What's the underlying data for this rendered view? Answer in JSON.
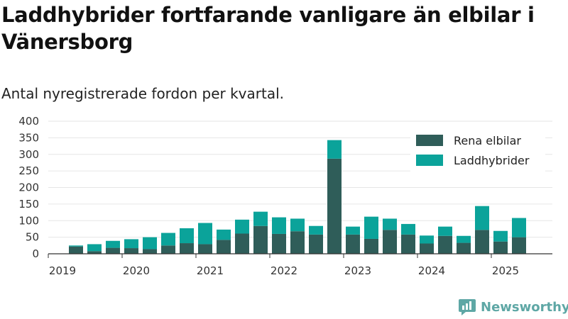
{
  "title": "Laddhybrider fortfarande vanligare än elbilar i Vänersborg",
  "subtitle": "Antal nyregistrerade fordon per kvartal.",
  "brand": {
    "name": "Newsworthy",
    "icon": "newsworthy-logo-icon",
    "color": "#5ea7a5"
  },
  "chart_data": {
    "type": "bar",
    "stacked": true,
    "grid": true,
    "legend_position": "top-right",
    "ylim": [
      0,
      400
    ],
    "y_ticks": [
      "0",
      "50",
      "100",
      "150",
      "200",
      "250",
      "300",
      "350",
      "400"
    ],
    "x_ticks": [
      "2019",
      "2020",
      "2021",
      "2022",
      "2023",
      "2024",
      "2025"
    ],
    "categories": [
      "2019 Q2",
      "2019 Q3",
      "2019 Q4",
      "2020 Q1",
      "2020 Q2",
      "2020 Q3",
      "2020 Q4",
      "2021 Q1",
      "2021 Q2",
      "2021 Q3",
      "2021 Q4",
      "2022 Q1",
      "2022 Q2",
      "2022 Q3",
      "2022 Q4",
      "2023 Q1",
      "2023 Q2",
      "2023 Q3",
      "2023 Q4",
      "2024 Q1",
      "2024 Q2",
      "2024 Q3",
      "2024 Q4",
      "2025 Q1",
      "2025 Q2"
    ],
    "series": [
      {
        "name": "Rena elbilar",
        "color": "#2f5d59",
        "values": [
          22,
          8,
          18,
          17,
          14,
          25,
          32,
          29,
          42,
          61,
          84,
          60,
          68,
          58,
          287,
          58,
          45,
          72,
          58,
          31,
          54,
          33,
          72,
          37,
          50
        ]
      },
      {
        "name": "Laddhybrider",
        "color": "#0ba39a",
        "values": [
          3,
          21,
          21,
          27,
          36,
          38,
          45,
          64,
          31,
          42,
          43,
          50,
          38,
          26,
          56,
          24,
          67,
          34,
          32,
          24,
          28,
          21,
          72,
          32,
          58
        ]
      }
    ]
  }
}
